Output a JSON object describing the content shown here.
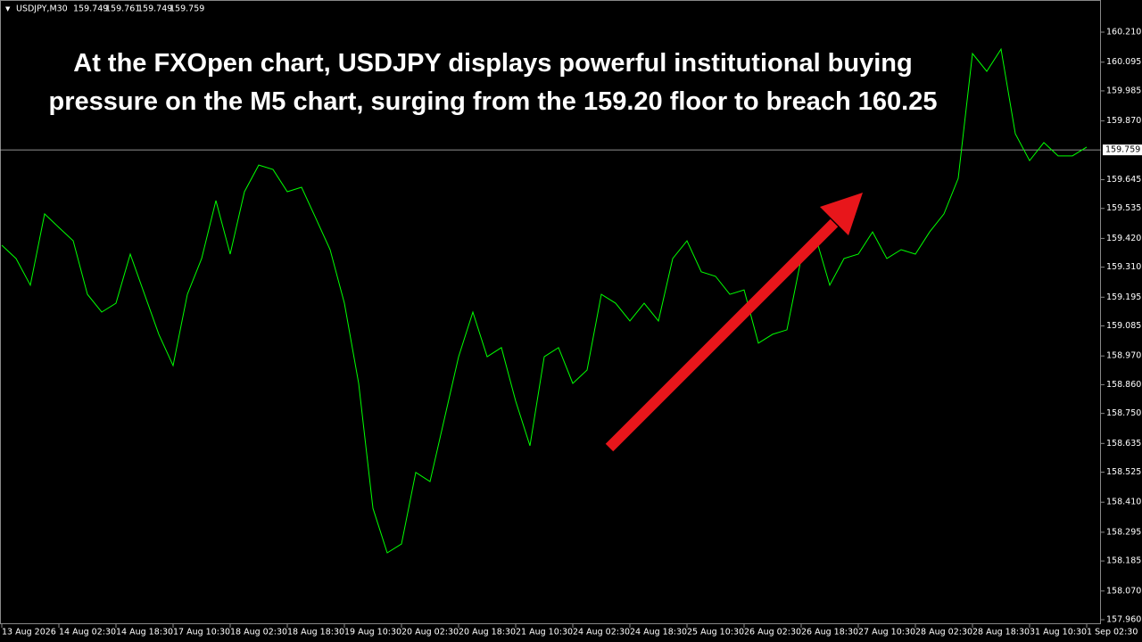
{
  "chart_data": {
    "type": "line",
    "symbol": "USDJPY,M30",
    "ohlc": [
      159.749,
      159.761,
      159.749,
      159.759
    ],
    "annotation": "At the FXOpen chart, USDJPY displays powerful institutional buying pressure on the M5 chart, surging from the 159.20 floor to breach 160.25",
    "color": "#00ff00",
    "categories": [
      "13 Aug 2026",
      null,
      null,
      null,
      "14 Aug 02:30",
      null,
      null,
      null,
      "14 Aug 18:30",
      null,
      null,
      null,
      "17 Aug 10:30",
      null,
      null,
      null,
      "18 Aug 02:30",
      null,
      null,
      null,
      "18 Aug 18:30",
      null,
      null,
      null,
      "19 Aug 10:30",
      null,
      null,
      null,
      "20 Aug 02:30",
      null,
      null,
      null,
      "20 Aug 18:30",
      null,
      null,
      null,
      "21 Aug 10:30",
      null,
      null,
      null,
      "24 Aug 02:30",
      null,
      null,
      null,
      "24 Aug 18:30",
      null,
      null,
      null,
      "25 Aug 10:30",
      null,
      null,
      null,
      "26 Aug 02:30",
      null,
      null,
      null,
      "26 Aug 18:30",
      null,
      null,
      null,
      "27 Aug 10:30",
      null,
      null,
      null,
      "28 Aug 02:30",
      null,
      null,
      null,
      "28 Aug 18:30",
      null,
      null,
      null,
      "31 Aug 10:30",
      null,
      null,
      null,
      "1 Sep 02:30"
    ],
    "values": [
      159.394,
      159.343,
      159.241,
      159.514,
      159.462,
      159.411,
      159.206,
      159.138,
      159.172,
      159.36,
      159.206,
      159.053,
      158.933,
      159.206,
      159.343,
      159.565,
      159.36,
      159.599,
      159.701,
      159.684,
      159.599,
      159.616,
      159.497,
      159.377,
      159.172,
      158.865,
      158.387,
      158.216,
      158.25,
      158.524,
      158.489,
      158.728,
      158.967,
      159.138,
      158.967,
      159.002,
      158.797,
      158.626,
      158.967,
      159.002,
      158.865,
      158.916,
      159.206,
      159.172,
      159.104,
      159.172,
      159.104,
      159.343,
      159.411,
      159.292,
      159.275,
      159.206,
      159.223,
      159.019,
      159.053,
      159.07,
      159.343,
      159.428,
      159.241,
      159.343,
      159.36,
      159.445,
      159.343,
      159.377,
      159.36,
      159.445,
      159.514,
      159.65,
      160.128,
      160.06,
      160.145,
      159.821,
      159.718,
      159.787,
      159.736,
      159.736,
      159.77
    ],
    "current_price": 159.759,
    "ylim": [
      157.943,
      160.333
    ],
    "yticks": [
      {
        "value": 160.21,
        "label": "160.210"
      },
      160.095,
      159.985,
      {
        "value": 159.87,
        "label": "159.870"
      },
      159.645,
      159.535,
      {
        "value": 159.42,
        "label": "159.420"
      },
      {
        "value": 159.31,
        "label": "159.310"
      },
      159.195,
      159.085,
      {
        "value": 158.97,
        "label": "158.970"
      },
      {
        "value": 158.86,
        "label": "158.860"
      },
      {
        "value": 158.75,
        "label": "158.750"
      },
      158.635,
      158.525,
      {
        "value": 158.41,
        "label": "158.410"
      },
      158.295,
      158.185,
      {
        "value": 158.07,
        "label": "158.070"
      },
      {
        "value": 157.96,
        "label": "157.960"
      }
    ]
  }
}
